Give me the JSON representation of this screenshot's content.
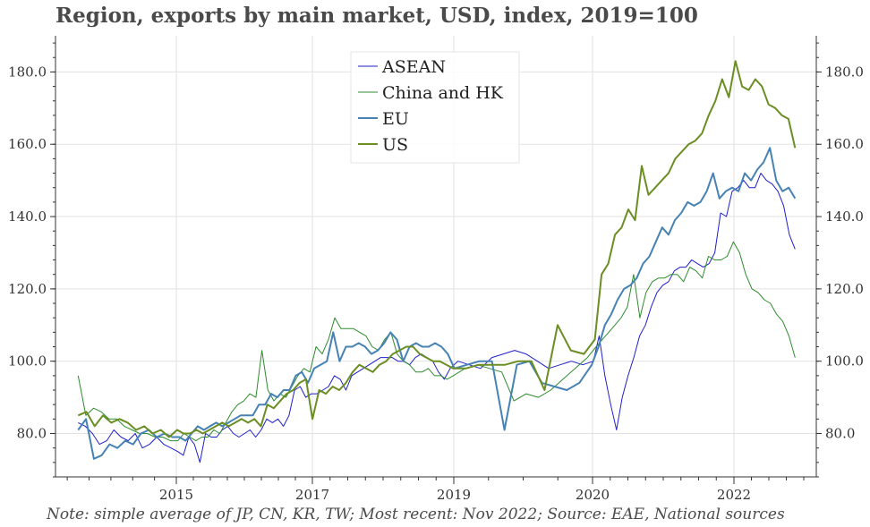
{
  "title": "Region, exports by main market, USD, index, 2019=100",
  "note": "Note: simple average of JP, CN, KR, TW; Most recent: Nov 2022; Source: EAE, National sources",
  "chart_data": {
    "type": "line",
    "x_start": "2013-11",
    "x_end": "2022-11",
    "frequency": "monthly",
    "x_tick_labels": [
      "2015",
      "2017",
      "2019",
      "2020",
      "2022"
    ],
    "y_tick_labels": [
      "80.0",
      "100.0",
      "120.0",
      "140.0",
      "160.0",
      "180.0"
    ],
    "ylim": [
      68,
      190
    ],
    "grid": true,
    "legend_position": "top-center",
    "y_axis_both_sides": true,
    "series": [
      {
        "name": "ASEAN",
        "color": "#1f1fcc",
        "stroke_width": 1,
        "values": [
          83,
          82,
          80,
          77,
          78,
          81,
          79,
          78,
          80,
          76,
          77,
          79,
          77,
          76,
          75,
          74,
          79,
          77,
          72,
          80,
          79,
          79,
          81,
          82,
          80,
          79,
          80,
          81,
          79,
          81,
          84,
          83,
          84,
          82,
          85,
          92,
          93,
          90,
          91,
          91,
          92,
          93,
          96,
          95,
          92,
          96,
          97,
          98,
          99,
          100,
          101,
          101,
          101,
          100,
          100,
          99,
          101,
          102,
          101,
          100,
          97,
          95,
          98,
          100,
          99,
          98,
          101,
          102,
          103,
          102,
          100,
          98,
          99,
          100,
          99,
          100,
          107,
          96,
          88,
          81,
          90,
          96,
          101,
          107,
          110,
          115,
          119,
          121,
          122,
          125,
          126,
          126,
          128,
          127,
          126,
          127,
          130,
          141,
          140,
          147,
          148,
          150,
          148,
          148,
          152,
          150,
          149,
          147,
          143,
          135,
          131
        ]
      },
      {
        "name": "China and HK",
        "color": "#2e8b2e",
        "stroke_width": 1,
        "values": [
          96,
          85,
          87,
          86,
          84,
          84,
          82,
          81,
          80,
          80,
          79,
          79,
          78,
          78,
          80,
          79,
          78,
          79,
          79,
          81,
          80,
          83,
          86,
          88,
          89,
          91,
          90,
          103,
          92,
          89,
          91,
          90,
          93,
          96,
          98,
          97,
          104,
          102,
          106,
          112,
          109,
          109,
          109,
          108,
          107,
          104,
          103,
          106,
          108,
          102,
          100,
          99,
          97,
          97,
          98,
          96,
          96,
          95,
          96,
          98,
          99,
          98,
          97,
          89,
          91,
          90,
          92,
          95,
          98,
          101,
          104,
          106,
          108,
          110,
          112,
          115,
          124,
          112,
          119,
          122,
          123,
          123,
          124,
          124,
          122,
          126,
          125,
          123,
          129,
          128,
          128,
          129,
          133,
          130,
          124,
          120,
          119,
          117,
          116,
          113,
          111,
          107,
          101
        ]
      },
      {
        "name": "EU",
        "color": "#4682b4",
        "stroke_width": 2,
        "values": [
          81,
          84,
          73,
          74,
          77,
          76,
          78,
          77,
          80,
          81,
          79,
          80,
          79,
          79,
          78,
          80,
          82,
          81,
          82,
          83,
          82,
          83,
          84,
          85,
          85,
          85,
          88,
          88,
          91,
          90,
          92,
          92,
          96,
          97,
          94,
          98,
          99,
          100,
          108,
          100,
          104,
          104,
          105,
          104,
          102,
          103,
          105,
          108,
          106,
          100,
          104,
          105,
          104,
          104,
          105,
          104,
          102,
          98,
          99,
          100,
          100,
          81,
          99,
          100,
          94,
          93,
          92,
          94,
          99,
          104,
          110,
          113,
          117,
          120,
          121,
          123,
          127,
          129,
          133,
          137,
          135,
          139,
          141,
          144,
          143,
          144,
          147,
          152,
          145,
          147,
          148,
          147,
          152,
          150,
          153,
          155,
          159,
          150,
          147,
          148,
          145
        ]
      },
      {
        "name": "US",
        "color": "#6b8e23",
        "stroke_width": 2,
        "values": [
          85,
          86,
          82,
          85,
          83,
          84,
          83,
          81,
          82,
          80,
          81,
          79,
          81,
          80,
          80,
          81,
          80,
          81,
          82,
          83,
          82,
          83,
          84,
          83,
          84,
          82,
          88,
          87,
          89,
          91,
          92,
          94,
          95,
          84,
          92,
          91,
          93,
          92,
          94,
          97,
          99,
          98,
          97,
          99,
          100,
          102,
          103,
          104,
          104,
          102,
          101,
          100,
          100,
          99,
          98,
          98,
          99,
          99,
          99,
          100,
          100,
          92,
          110,
          103,
          102,
          106,
          124,
          127,
          135,
          137,
          142,
          139,
          154,
          146,
          148,
          150,
          152,
          156,
          158,
          160,
          161,
          163,
          168,
          172,
          178,
          173,
          183,
          176,
          175,
          178,
          176,
          171,
          170,
          168,
          167,
          159
        ]
      }
    ]
  }
}
